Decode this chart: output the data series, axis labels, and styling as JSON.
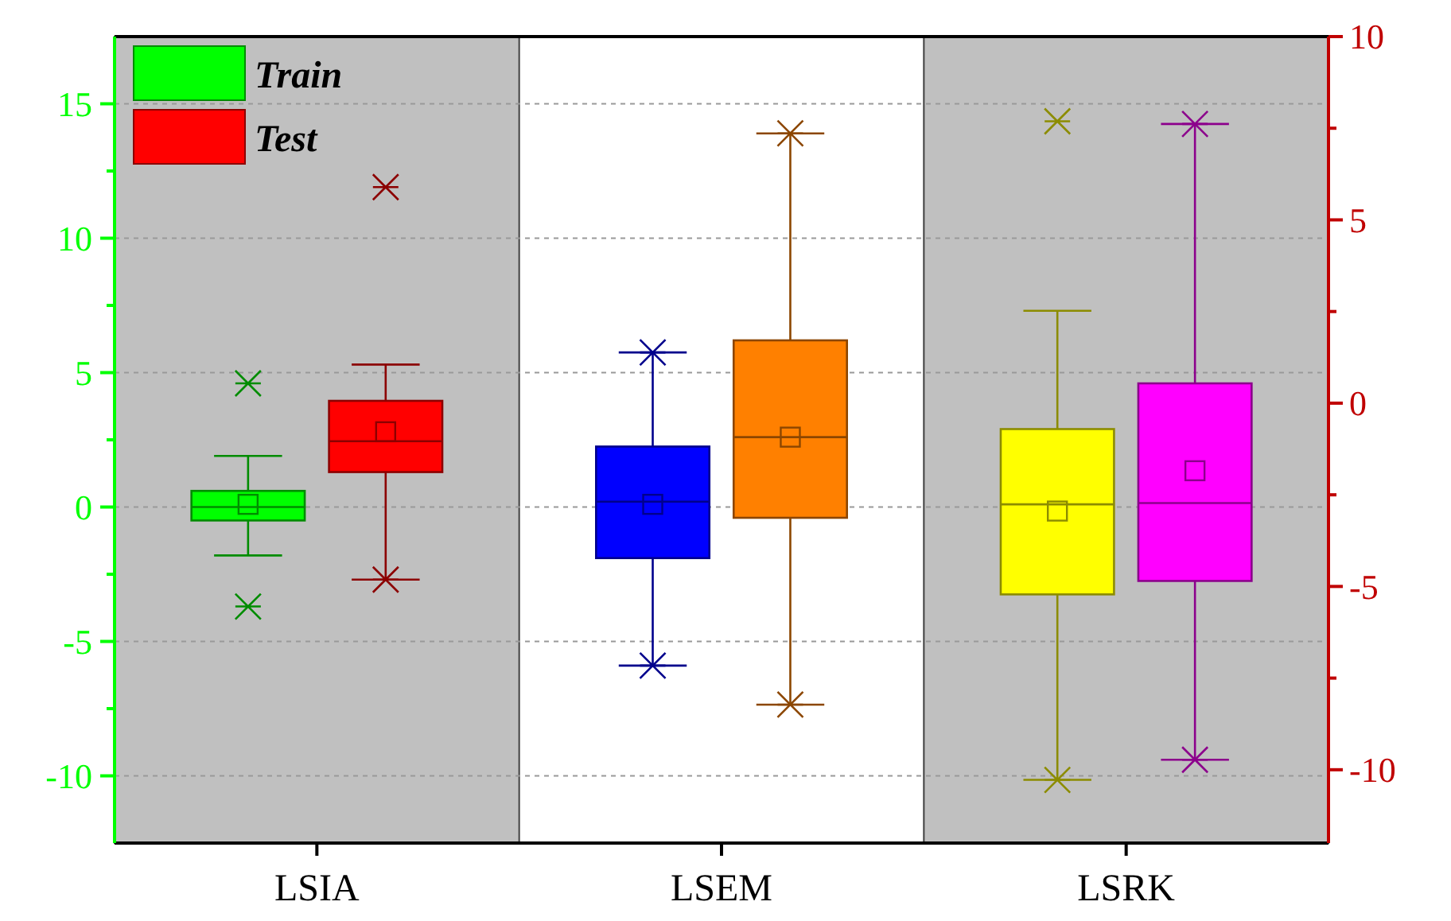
{
  "chart_data": {
    "type": "box",
    "categories": [
      "LSIA",
      "LSEM",
      "LSRK"
    ],
    "series": [
      {
        "name": "Train",
        "color": "#00ff00",
        "colors": [
          "#00ff00",
          "#0000ff",
          "#ffff00"
        ],
        "boxes": [
          {
            "low": -1.8,
            "q1": -0.5,
            "median": 0,
            "q3": 0.6,
            "high": 1.9,
            "mean": 0.1,
            "outliers": [
              4.6,
              -3.7
            ]
          },
          {
            "low": -5.9,
            "q1": -1.9,
            "median": 0.2,
            "q3": 2.25,
            "high": 5.75,
            "mean": 0.1
          },
          {
            "low": -10.15,
            "q1": -3.25,
            "median": 0.1,
            "q3": 2.9,
            "high": 7.3,
            "mean": -0.15,
            "outliers": [
              14.35
            ]
          }
        ]
      },
      {
        "name": "Test",
        "color": "#ff0000",
        "colors": [
          "#ff0000",
          "#ff8000",
          "#ff00ff"
        ],
        "boxes": [
          {
            "low": -2.7,
            "q1": 1.3,
            "median": 2.45,
            "q3": 3.95,
            "high": 5.3,
            "mean": 2.8,
            "outliers": [
              11.9
            ]
          },
          {
            "low": -7.35,
            "q1": -0.4,
            "median": 2.6,
            "q3": 6.2,
            "high": 13.9,
            "mean": 2.6
          },
          {
            "low": -9.4,
            "q1": -2.75,
            "median": 0.15,
            "q3": 4.6,
            "high": 14.25,
            "mean": 1.35
          }
        ]
      }
    ],
    "ylim": [
      -12.5,
      17.5
    ],
    "yticks": [
      -10,
      {
        "value": -7.5,
        "label": null
      },
      -5,
      {
        "value": -2.5,
        "label": null
      },
      0,
      {
        "value": 2.5,
        "label": null
      },
      5,
      {
        "value": 7.5,
        "label": null
      },
      10,
      {
        "value": 12.5,
        "label": null
      },
      15
    ],
    "y2lim": [
      -12,
      10
    ],
    "y2ticks": [
      -10,
      {
        "value": -7.5,
        "label": null
      },
      -5,
      {
        "value": -2.5,
        "label": null
      },
      0,
      {
        "value": 2.5,
        "label": null
      },
      5,
      {
        "value": 7.5,
        "label": null
      },
      10
    ],
    "bands": [
      {
        "axis": "x",
        "from": "LSIA",
        "to": "LSIA",
        "color": "#c0c0c0"
      },
      {
        "axis": "x",
        "from": "LSRK",
        "to": "LSRK",
        "color": "#c0c0c0"
      }
    ],
    "grid": "y",
    "legend": "top left",
    "marker": "cross"
  }
}
